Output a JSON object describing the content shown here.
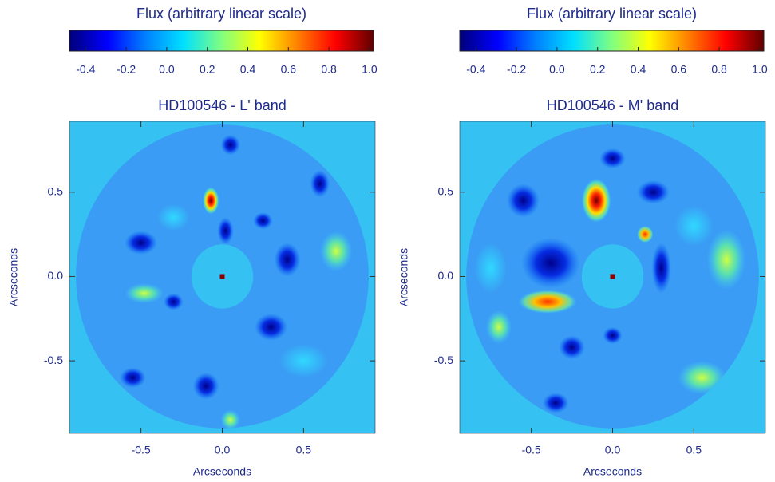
{
  "chart_data": [
    {
      "type": "heatmap",
      "title": "HD100546 - L' band",
      "colorbar_label": "Flux (arbitrary linear scale)",
      "xlabel": "Arcseconds",
      "ylabel": "Arcseconds",
      "colormap": [
        "#00007a",
        "#0000ff",
        "#0080ff",
        "#00e0ff",
        "#80ff80",
        "#ffff00",
        "#ff8000",
        "#ff0000",
        "#600000"
      ],
      "clim": [
        -0.48,
        1.02
      ],
      "cticks": [
        -0.4,
        -0.2,
        {
          "value": 0,
          "label": "0.0"
        },
        0.2,
        0.4,
        0.6,
        0.8,
        {
          "value": 1,
          "label": "1.0"
        }
      ],
      "xlim": [
        -0.94,
        0.94
      ],
      "xticks": [
        -0.5,
        {
          "value": 0,
          "label": "0.0"
        },
        0.5
      ],
      "ylim": [
        -0.93,
        0.92
      ],
      "yticks": [
        -0.5,
        {
          "value": 0,
          "label": "0.0"
        },
        0.5
      ]
    },
    {
      "type": "heatmap",
      "title": "HD100546 - M' band",
      "colorbar_label": "Flux (arbitrary linear scale)",
      "xlabel": "Arcseconds",
      "ylabel": "Arcseconds",
      "colormap": [
        "#00007a",
        "#0000ff",
        "#0080ff",
        "#00e0ff",
        "#80ff80",
        "#ffff00",
        "#ff8000",
        "#ff0000",
        "#600000"
      ],
      "clim": [
        -0.48,
        1.02
      ],
      "cticks": [
        -0.4,
        -0.2,
        {
          "value": 0,
          "label": "0.0"
        },
        0.2,
        0.4,
        0.6,
        0.8,
        {
          "value": 1,
          "label": "1.0"
        }
      ],
      "xlim": [
        -0.94,
        0.94
      ],
      "xticks": [
        -0.5,
        {
          "value": 0,
          "label": "0.0"
        },
        0.5
      ],
      "ylim": [
        -0.93,
        0.92
      ],
      "yticks": [
        -0.5,
        {
          "value": 0,
          "label": "0.0"
        },
        0.5
      ]
    }
  ]
}
